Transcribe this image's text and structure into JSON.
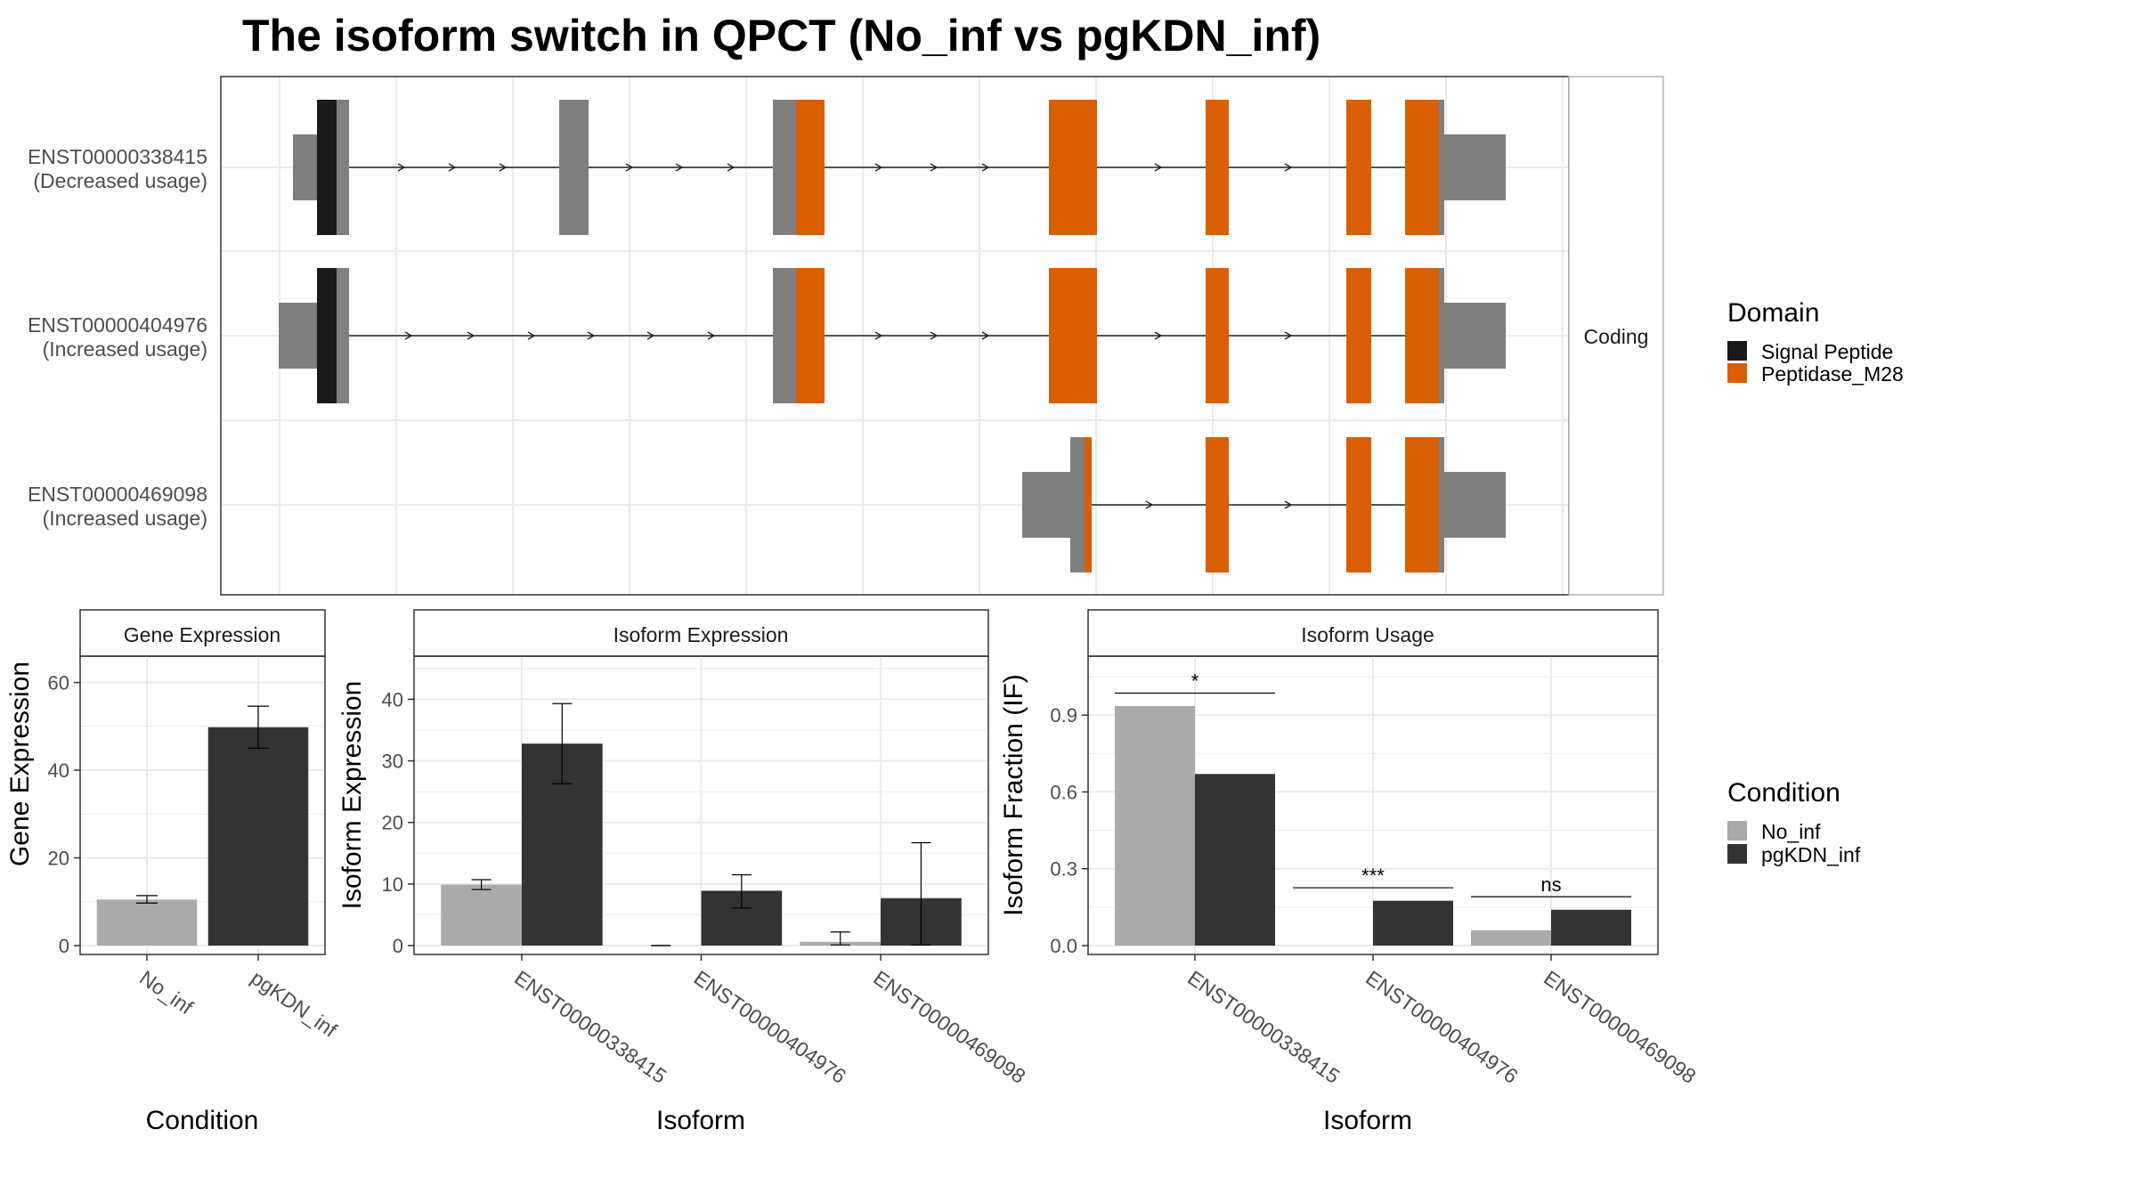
{
  "title": "The isoform switch in QPCT (No_inf vs pgKDN_inf)",
  "colors": {
    "signal_peptide": "#1a1a1a",
    "peptidase": "#d95f02",
    "utr": "#7f7f7f",
    "no_inf": "#aaaaaa",
    "pgkdn_inf": "#333333",
    "grid": "#ebebeb",
    "strip_bg": "#ffffff"
  },
  "transcripts": {
    "facet_label": "Coding",
    "items": [
      {
        "id": "ENST00000338415",
        "usage": "(Decreased usage)"
      },
      {
        "id": "ENST00000404976",
        "usage": "(Increased usage)"
      },
      {
        "id": "ENST00000469098",
        "usage": "(Increased usage)"
      }
    ]
  },
  "domain_legend": {
    "title": "Domain",
    "items": [
      {
        "label": "Signal Peptide",
        "color": "#1a1a1a"
      },
      {
        "label": "Peptidase_M28",
        "color": "#d95f02"
      }
    ]
  },
  "condition_legend": {
    "title": "Condition",
    "items": [
      {
        "label": "No_inf",
        "color": "#aaaaaa"
      },
      {
        "label": "pgKDN_inf",
        "color": "#333333"
      }
    ]
  },
  "chart_data": [
    {
      "type": "bar",
      "title": "Gene Expression",
      "xlabel": "Condition",
      "ylabel": "Gene Expression",
      "categories": [
        "No_inf",
        "pgKDN_inf"
      ],
      "values": [
        10.5,
        49.8
      ],
      "error_low": [
        9.7,
        45.0
      ],
      "error_high": [
        11.4,
        54.6
      ],
      "ylim": [
        0,
        66
      ],
      "yticks": [
        "0",
        "20",
        "40",
        "60"
      ],
      "grid": true
    },
    {
      "type": "bar",
      "title": "Isoform Expression",
      "xlabel": "Isoform",
      "ylabel": "Isoform Expression",
      "categories": [
        "ENST00000338415",
        "ENST00000404976",
        "ENST00000469098"
      ],
      "series": [
        {
          "name": "No_inf",
          "values": [
            9.9,
            0.0,
            0.6
          ],
          "error_low": [
            9.1,
            0.0,
            0.1
          ],
          "error_high": [
            10.7,
            0.0,
            2.2
          ]
        },
        {
          "name": "pgKDN_inf",
          "values": [
            32.8,
            8.9,
            7.7
          ],
          "error_low": [
            26.3,
            6.1,
            0.1
          ],
          "error_high": [
            39.3,
            11.5,
            16.7
          ]
        }
      ],
      "ylim": [
        0,
        47
      ],
      "yticks": [
        "0",
        "10",
        "20",
        "30",
        "40"
      ],
      "grid": true
    },
    {
      "type": "bar",
      "title": "Isoform Usage",
      "xlabel": "Isoform",
      "ylabel": "Isoform Fraction (IF)",
      "categories": [
        "ENST00000338415",
        "ENST00000404976",
        "ENST00000469098"
      ],
      "series": [
        {
          "name": "No_inf",
          "values": [
            0.935,
            0.0,
            0.06
          ]
        },
        {
          "name": "pgKDN_inf",
          "values": [
            0.67,
            0.175,
            0.14
          ]
        }
      ],
      "significance": [
        "*",
        "***",
        "ns"
      ],
      "ylim": [
        0,
        1.13
      ],
      "yticks": [
        "0.0",
        "0.3",
        "0.6",
        "0.9"
      ],
      "grid": true
    }
  ]
}
